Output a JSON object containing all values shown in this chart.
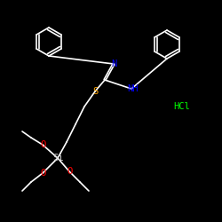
{
  "background_color": "#000000",
  "atom_colors": {
    "N": "#0000ff",
    "S": "#ffa500",
    "O": "#ff0000",
    "Si": "#d3d3d3",
    "C": "#ffffff",
    "Cl": "#00ff00"
  },
  "figsize": [
    2.5,
    2.5
  ],
  "dpi": 100
}
